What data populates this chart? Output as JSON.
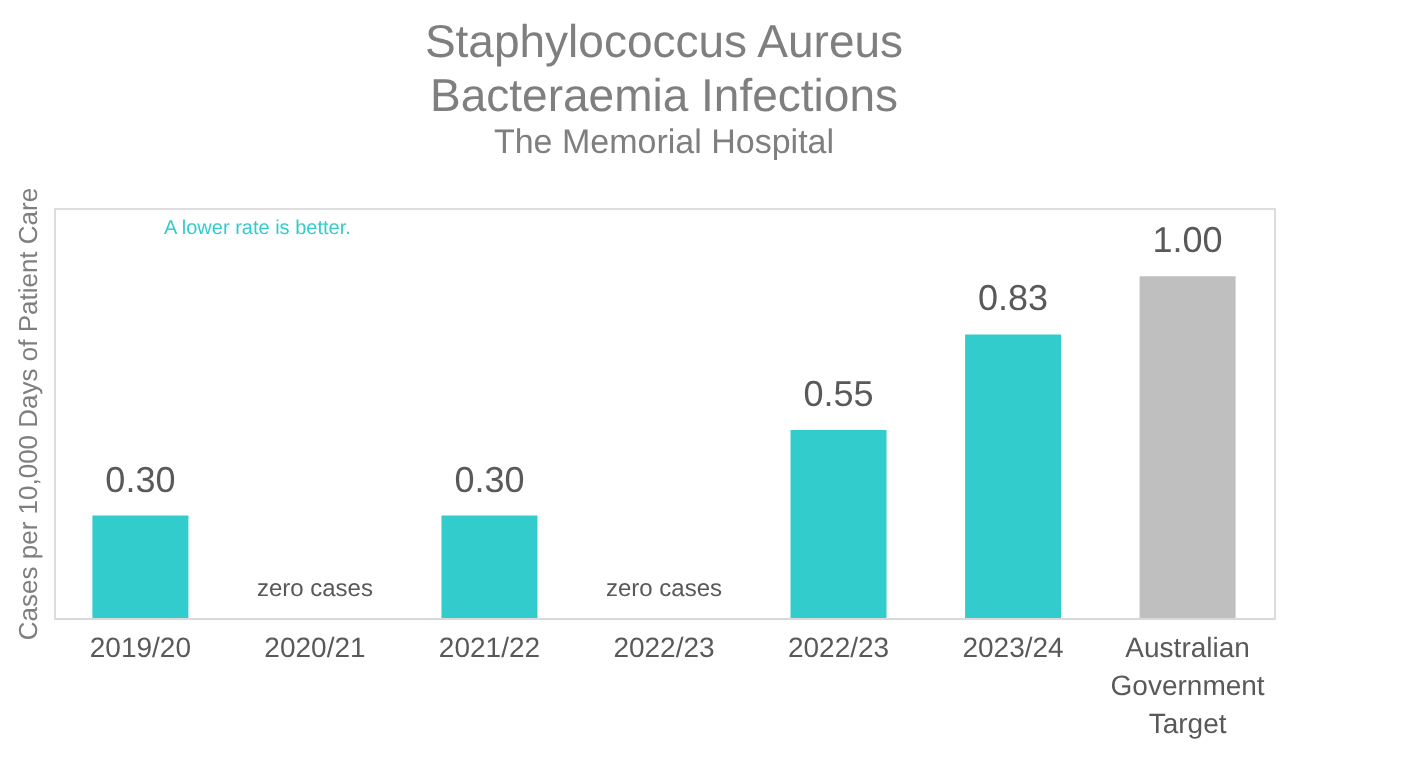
{
  "chart_data": {
    "type": "bar",
    "title": [
      "Staphylococcus Aureus",
      "Bacteraemia Infections"
    ],
    "subtitle": "The Memorial Hospital",
    "ylabel": "Cases per 10,000 Days of Patient Care",
    "categories": [
      "2019/20",
      "2020/21",
      "2021/22",
      "2022/23",
      "2022/23",
      "2023/24",
      "Australian Government Target"
    ],
    "values": [
      0.3,
      0,
      0.3,
      0,
      0.55,
      0.83,
      1.0
    ],
    "value_labels": [
      "0.30",
      "zero cases",
      "0.30",
      "zero cases",
      "0.55",
      "0.83",
      "1.00"
    ],
    "colors": [
      "#33cccc",
      "#33cccc",
      "#33cccc",
      "#33cccc",
      "#33cccc",
      "#33cccc",
      "#bfbfbf"
    ],
    "ylim": [
      0,
      1.2
    ],
    "grid": false,
    "tick_labels": "x",
    "annotations": [
      "A lower rate is better."
    ]
  }
}
